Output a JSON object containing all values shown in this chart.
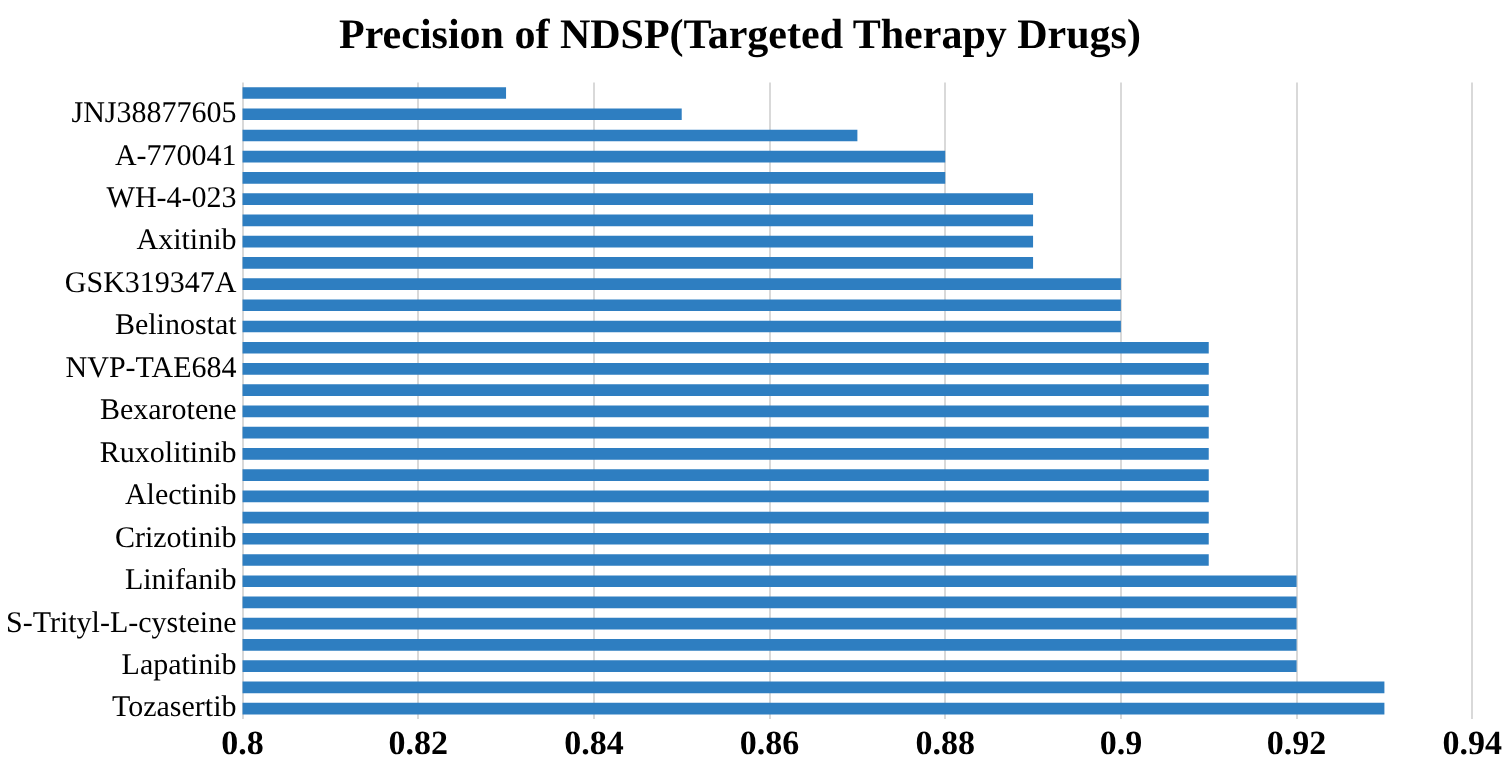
{
  "chart_data": {
    "type": "bar",
    "orientation": "horizontal",
    "title": "Precision of NDSP(Targeted Therapy Drugs)",
    "categories": [
      null,
      "JNJ38877605",
      null,
      "A-770041",
      null,
      "WH-4-023",
      null,
      "Axitinib",
      null,
      "GSK319347A",
      null,
      "Belinostat",
      null,
      "NVP-TAE684",
      null,
      "Bexarotene",
      null,
      "Ruxolitinib",
      null,
      "Alectinib",
      null,
      "Crizotinib",
      null,
      "Linifanib",
      null,
      "S-Trityl-L-cysteine",
      null,
      "Lapatinib",
      null,
      "Tozasertib"
    ],
    "values": [
      0.83,
      0.85,
      0.87,
      0.88,
      0.88,
      0.89,
      0.89,
      0.89,
      0.89,
      0.9,
      0.9,
      0.9,
      0.91,
      0.91,
      0.91,
      0.91,
      0.91,
      0.91,
      0.91,
      0.91,
      0.91,
      0.91,
      0.91,
      0.92,
      0.92,
      0.92,
      0.92,
      0.92,
      0.93,
      0.93
    ],
    "color": "#2e7ec1",
    "xlim": [
      0.8,
      0.94
    ],
    "xticks": [
      0.8,
      0.82,
      0.84,
      0.86,
      0.88,
      0.9,
      0.92,
      0.94
    ],
    "grid": "x"
  }
}
